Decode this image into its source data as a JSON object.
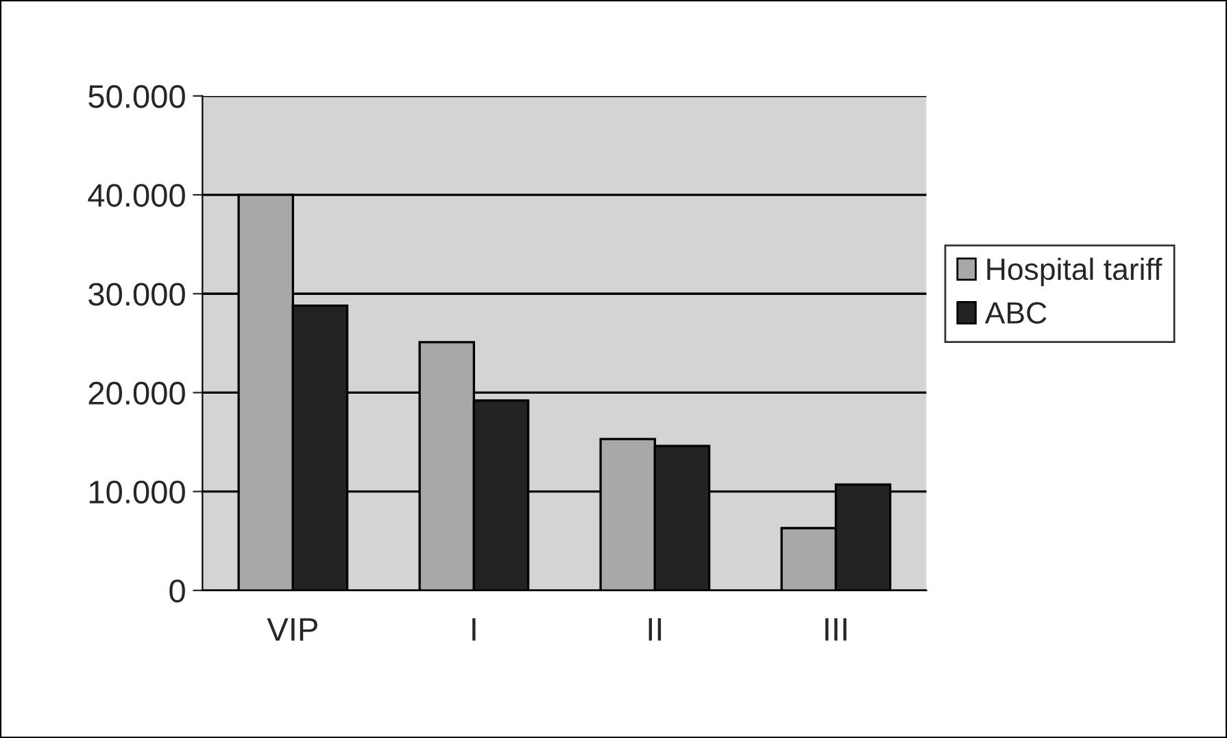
{
  "chart_data": {
    "type": "bar",
    "categories": [
      "VIP",
      "I",
      "II",
      "III"
    ],
    "series": [
      {
        "name": "Hospital tariff",
        "color": "#a8a8a8",
        "values": [
          40000,
          25100,
          15300,
          6300
        ]
      },
      {
        "name": "ABC",
        "color": "#232323",
        "values": [
          28800,
          19200,
          14600,
          10700
        ]
      }
    ],
    "ylim": [
      0,
      50000
    ],
    "yticks": [
      0,
      {
        "value": 10000,
        "label": "10.000"
      },
      {
        "value": 20000,
        "label": "20.000"
      },
      {
        "value": 30000,
        "label": "30.000"
      },
      {
        "value": 40000,
        "label": "40.000"
      },
      {
        "value": 50000,
        "label": "50.000"
      }
    ],
    "grid": "y",
    "legend": "right"
  }
}
